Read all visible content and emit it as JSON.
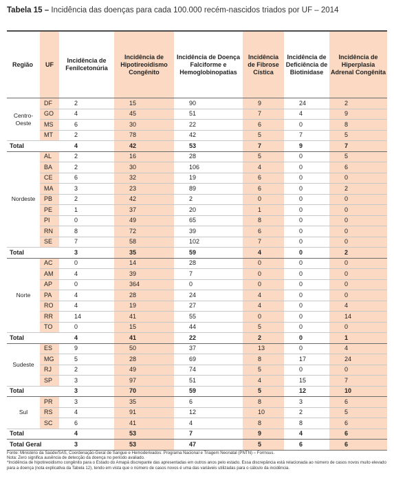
{
  "title": {
    "label": "Tabela 15",
    "dash": "–",
    "text": "Incidência das doenças para cada 100.000 recém-nascidos triados por UF – 2014"
  },
  "columns": {
    "regiao": "Região",
    "uf": "UF",
    "fenil": "Incidência de Fenilcetonúria",
    "hipo": "Incidência de Hipotireoidismo Congênito",
    "falci": "Incidência de Doença Falciforme e Hemoglobinopatias",
    "fibrose": "Incidência de Fibrose Cística",
    "biot": "Incidência de Deficiência de Biotinidase",
    "hiper": "Incidência de Hiperplasia Adrenal Congênita"
  },
  "regions": [
    {
      "name": "Centro-Oeste",
      "rows": [
        [
          "DF",
          "2",
          "15",
          "90",
          "9",
          "24",
          "2"
        ],
        [
          "GO",
          "4",
          "45",
          "51",
          "7",
          "4",
          "9"
        ],
        [
          "MS",
          "6",
          "30",
          "22",
          "6",
          "0",
          "8"
        ],
        [
          "MT",
          "2",
          "78",
          "42",
          "5",
          "7",
          "5"
        ]
      ],
      "total": [
        "Total",
        "4",
        "42",
        "53",
        "7",
        "9",
        "7"
      ]
    },
    {
      "name": "Nordeste",
      "rows": [
        [
          "AL",
          "2",
          "16",
          "28",
          "5",
          "0",
          "5"
        ],
        [
          "BA",
          "2",
          "30",
          "106",
          "4",
          "0",
          "6"
        ],
        [
          "CE",
          "6",
          "32",
          "19",
          "6",
          "0",
          "0"
        ],
        [
          "MA",
          "3",
          "23",
          "89",
          "6",
          "0",
          "2"
        ],
        [
          "PB",
          "2",
          "42",
          "2",
          "0",
          "0",
          "0"
        ],
        [
          "PE",
          "1",
          "37",
          "20",
          "1",
          "0",
          "0"
        ],
        [
          "PI",
          "0",
          "49",
          "65",
          "8",
          "0",
          "0"
        ],
        [
          "RN",
          "8",
          "72",
          "39",
          "6",
          "0",
          "0"
        ],
        [
          "SE",
          "7",
          "58",
          "102",
          "7",
          "0",
          "0"
        ]
      ],
      "total": [
        "Total",
        "3",
        "35",
        "59",
        "4",
        "0",
        "2"
      ]
    },
    {
      "name": "Norte",
      "rows": [
        [
          "AC",
          "0",
          "14",
          "28",
          "0",
          "0",
          "0"
        ],
        [
          "AM",
          "4",
          "39",
          "7",
          "0",
          "0",
          "0"
        ],
        [
          "AP",
          "0",
          "364",
          "0",
          "0",
          "0",
          "0"
        ],
        [
          "PA",
          "4",
          "28",
          "24",
          "4",
          "0",
          "0"
        ],
        [
          "RO",
          "4",
          "19",
          "27",
          "4",
          "0",
          "4"
        ],
        [
          "RR",
          "14",
          "41",
          "55",
          "0",
          "0",
          "14"
        ],
        [
          "TO",
          "0",
          "15",
          "44",
          "5",
          "0",
          "0"
        ]
      ],
      "total": [
        "Total",
        "4",
        "41",
        "22",
        "2",
        "0",
        "1"
      ]
    },
    {
      "name": "Sudeste",
      "rows": [
        [
          "ES",
          "9",
          "50",
          "37",
          "13",
          "0",
          "4"
        ],
        [
          "MG",
          "5",
          "28",
          "69",
          "8",
          "17",
          "24"
        ],
        [
          "RJ",
          "2",
          "49",
          "74",
          "5",
          "0",
          "0"
        ],
        [
          "SP",
          "3",
          "97",
          "51",
          "4",
          "15",
          "7"
        ]
      ],
      "total": [
        "Total",
        "3",
        "70",
        "59",
        "5",
        "12",
        "10"
      ]
    },
    {
      "name": "Sul",
      "rows": [
        [
          "PR",
          "3",
          "35",
          "6",
          "8",
          "3",
          "6"
        ],
        [
          "RS",
          "4",
          "91",
          "12",
          "10",
          "2",
          "5"
        ],
        [
          "SC",
          "6",
          "41",
          "4",
          "8",
          "8",
          "6"
        ]
      ],
      "total": [
        "Total",
        "4",
        "53",
        "7",
        "9",
        "4",
        "6"
      ]
    }
  ],
  "grand_total": [
    "Total Geral",
    "3",
    "53",
    "47",
    "5",
    "6",
    "6"
  ],
  "notes": {
    "fonte": "Fonte: Ministério da Saúde/SAS, Coordenação-Geral de Sangue e Hemoderivados: Programa Nacional e Triagem Neonatal (PNTN) – Formsus.",
    "nota": "Nota: Zero significa ausência de detecção da doença no período avaliado.",
    "asterisco": "*Incidência de hipotireoidismo congênito para o Estado do Amapá discrepante das apresentadas em outros anos pelo estado. Essa discrepância está relacionada ao número de casos novos muito elevado para a doença (nota explicativa da Tabela 12), tendo em vista que o número de casos novos é uma das variáveis utilizadas para o cálculo da incidência."
  },
  "colors": {
    "highlight": "#fbd9c2",
    "rule": "#4a4a4a"
  }
}
